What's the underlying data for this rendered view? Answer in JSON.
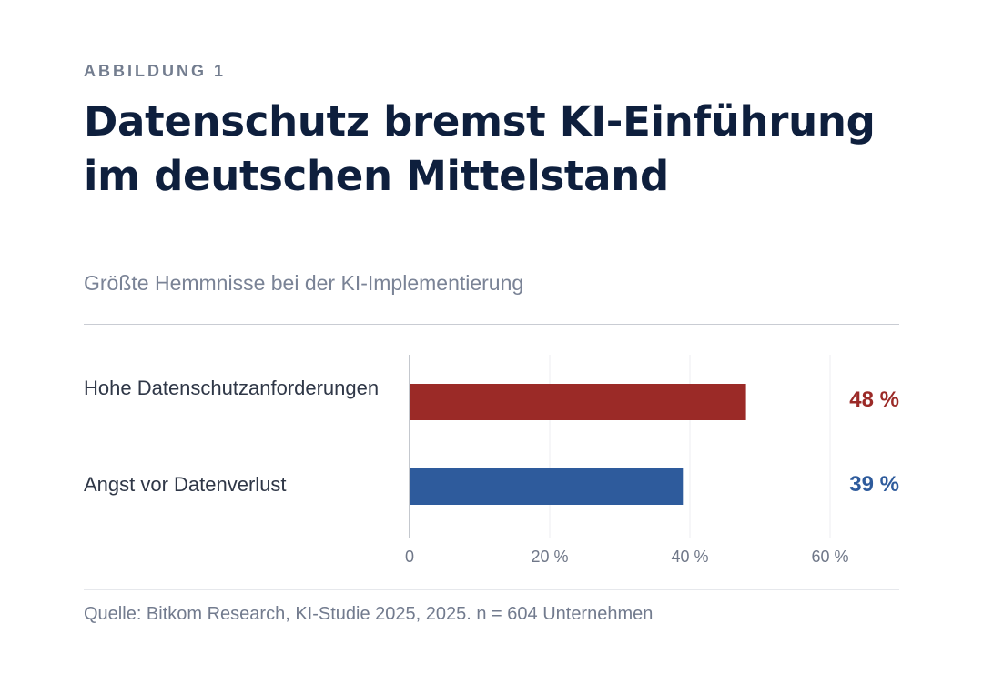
{
  "figure": {
    "eyebrow": "ABBILDUNG 1",
    "title": "Datenschutz bremst KI-Einführung im deutschen Mittelstand",
    "subtitle": "Größte Hemmnisse bei der KI-Implementierung",
    "source": "Quelle: Bitkom Research, KI-Studie 2025, 2025. n = 604 Unternehmen"
  },
  "chart_data": {
    "type": "bar",
    "orientation": "horizontal",
    "title": "Datenschutz bremst KI-Einführung im deutschen Mittelstand",
    "subtitle": "Größte Hemmnisse bei der KI-Implementierung",
    "categories": [
      "Hohe Datenschutzanforderungen",
      "Angst vor Datenverlust"
    ],
    "values": [
      48,
      39
    ],
    "value_labels": [
      "48 %",
      "39 %"
    ],
    "colors": [
      "#9b2a27",
      "#2e5b9c"
    ],
    "xlim": [
      0,
      70
    ],
    "xticks": [
      0,
      20,
      40,
      60
    ],
    "xtick_labels": [
      "0",
      "20 %",
      "40 %",
      "60 %"
    ],
    "xlabel": "",
    "ylabel": "",
    "grid": true,
    "legend": "none"
  },
  "colors": {
    "title": "#0e1f3d",
    "muted": "#737d8f",
    "grid": "#eceef1",
    "axis": "#8a909c",
    "tick": "#6f7788"
  }
}
